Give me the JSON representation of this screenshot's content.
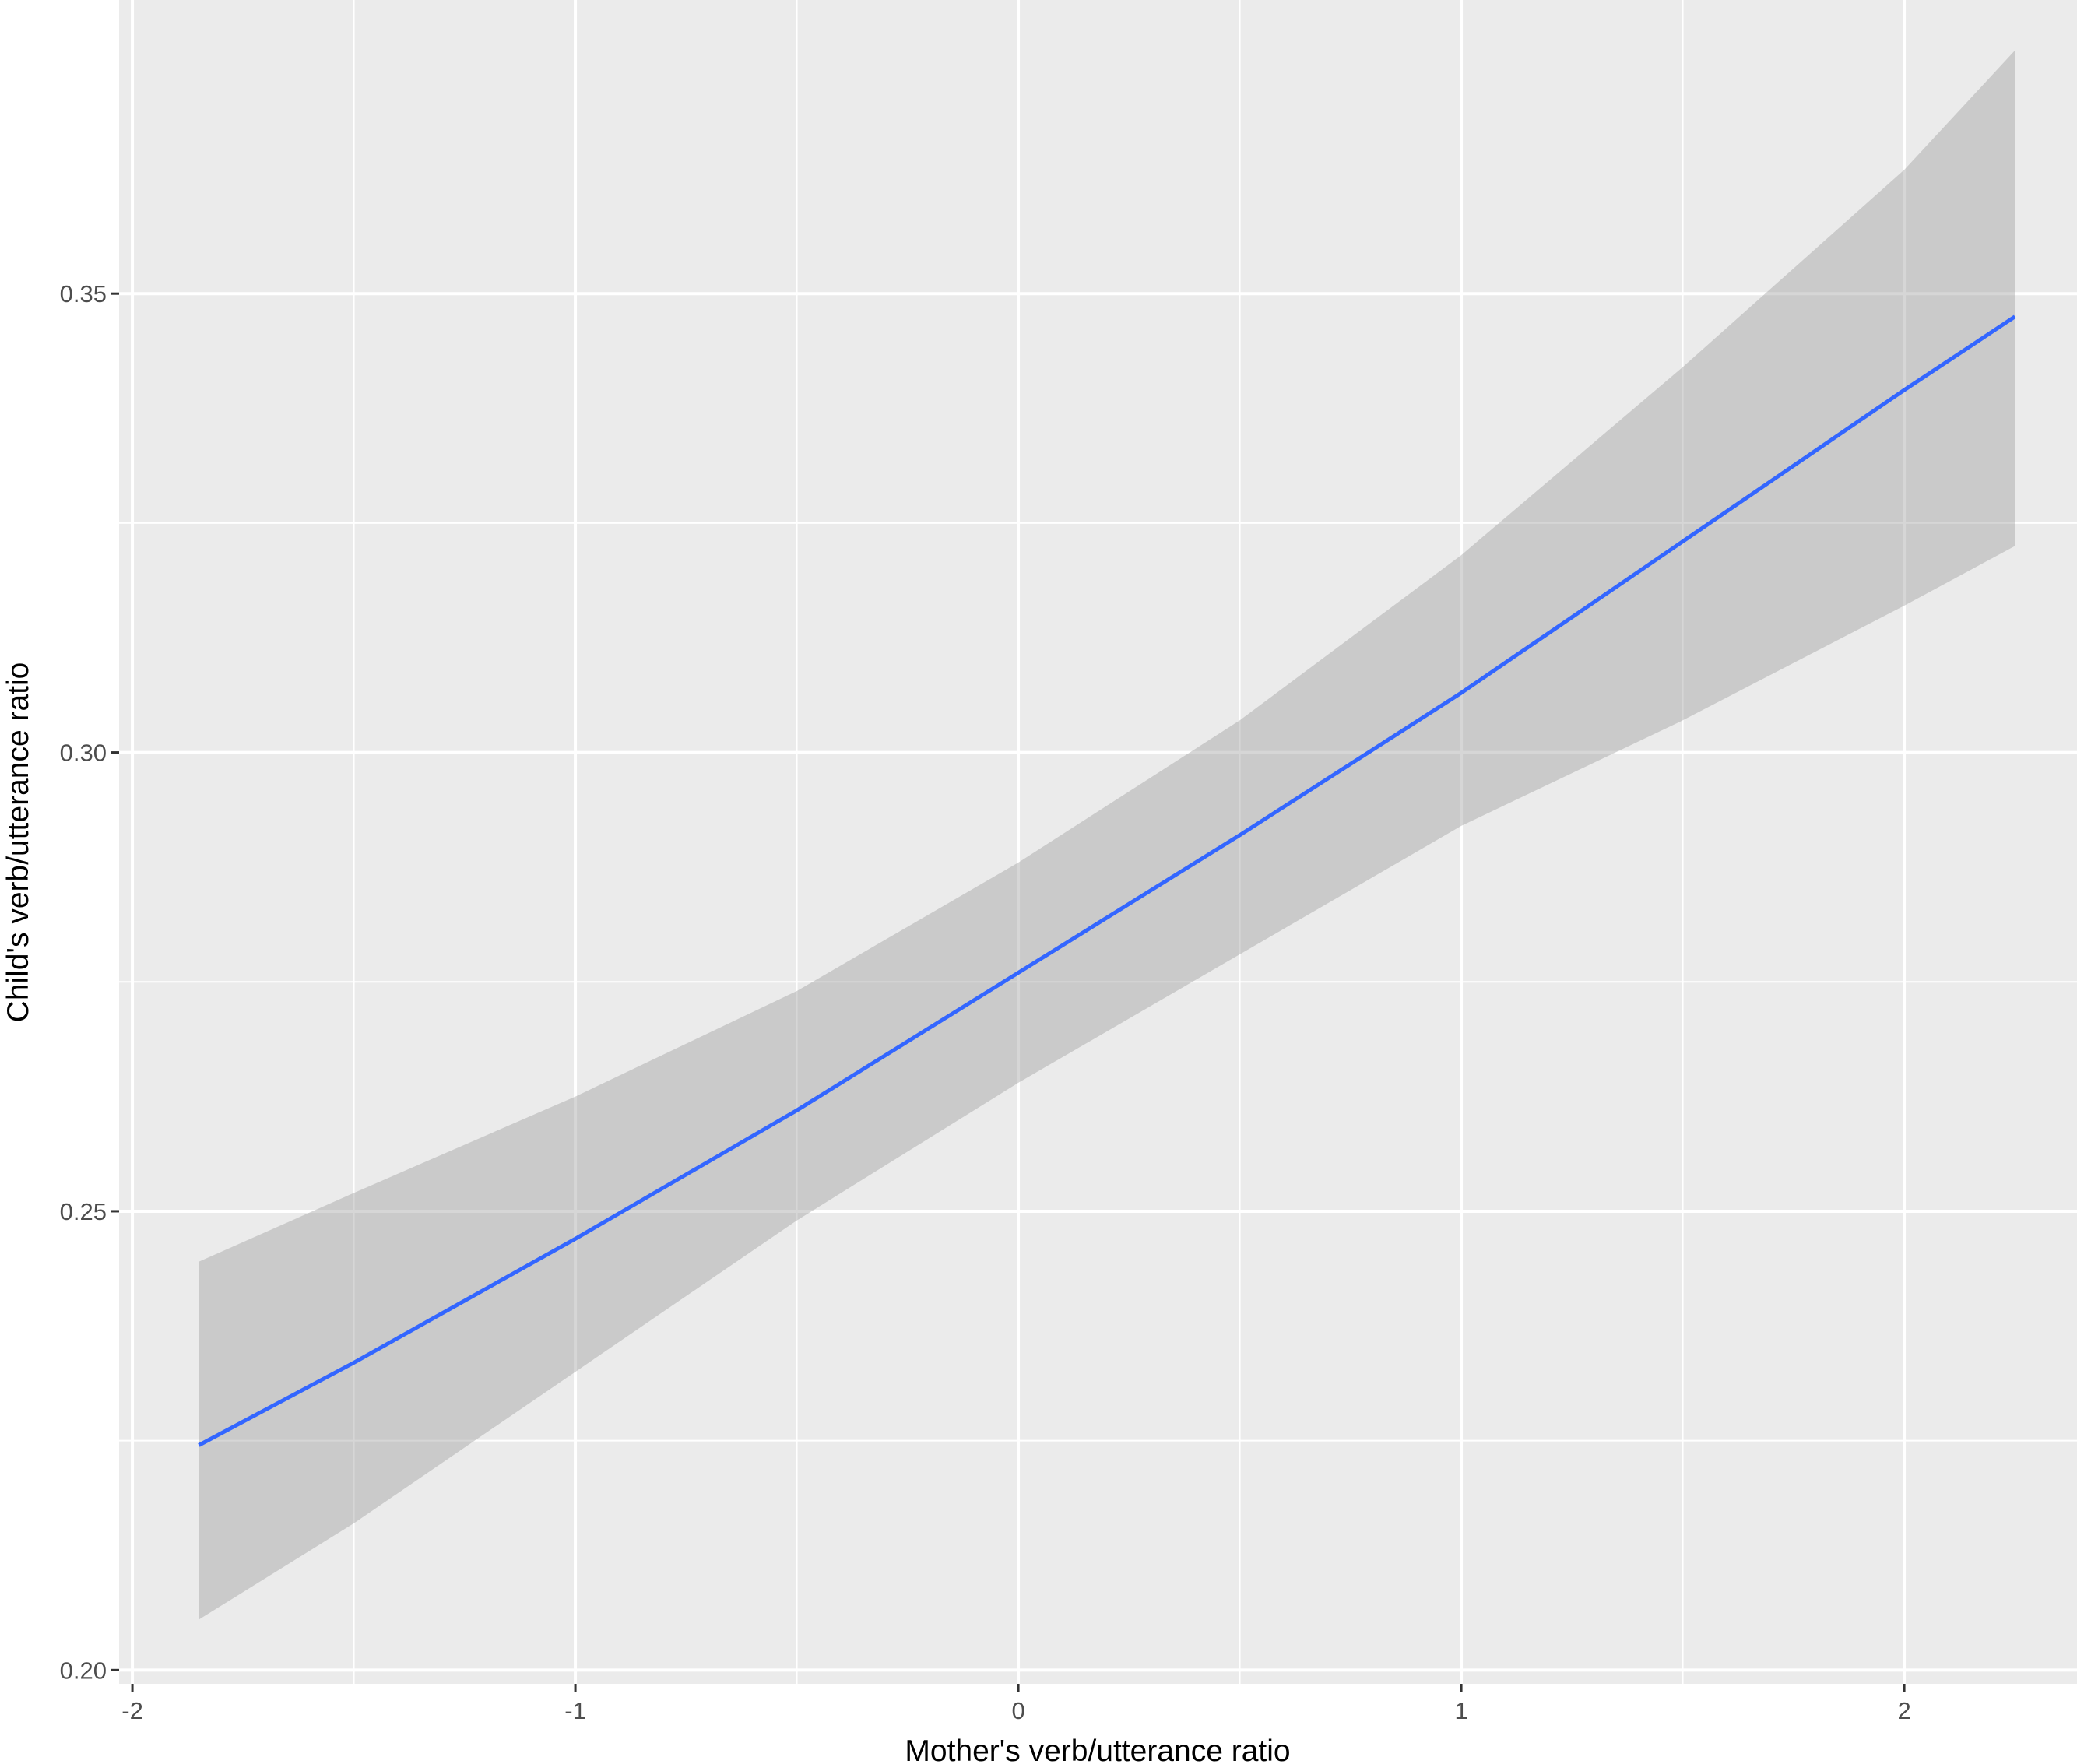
{
  "chart_data": {
    "type": "line",
    "title": "",
    "xlabel": "Mother's verb/utterance ratio",
    "ylabel": "Child's verb/utterance ratio",
    "xlim": [
      -2.03,
      2.39
    ],
    "ylim": [
      0.1985,
      0.382
    ],
    "x_ticks": [
      -2,
      -1,
      0,
      1,
      2
    ],
    "x_tick_labels": [
      "-2",
      "-1",
      "0",
      "1",
      "2"
    ],
    "y_ticks": [
      0.2,
      0.25,
      0.3,
      0.35
    ],
    "y_tick_labels": [
      "0.20",
      "0.25",
      "0.30",
      "0.35"
    ],
    "grid": true,
    "series": [
      {
        "color": "#3366ff",
        "x": [
          -1.85,
          -1.5,
          -1.0,
          -0.5,
          0.0,
          0.5,
          1.0,
          1.5,
          2.0,
          2.25
        ],
        "y": [
          0.2245,
          0.2335,
          0.247,
          0.261,
          0.276,
          0.291,
          0.3065,
          0.323,
          0.3395,
          0.3475
        ],
        "ci_lower": [
          0.2055,
          0.216,
          0.2325,
          0.249,
          0.264,
          0.278,
          0.292,
          0.3035,
          0.316,
          0.3225
        ],
        "ci_upper": [
          0.2445,
          0.252,
          0.2625,
          0.274,
          0.288,
          0.3035,
          0.3215,
          0.342,
          0.3635,
          0.3765
        ],
        "band_color": "#999999"
      }
    ],
    "colors": {
      "panel_background": "#ebebeb",
      "grid_major": "#ffffff",
      "tick_mark": "#333333"
    }
  }
}
